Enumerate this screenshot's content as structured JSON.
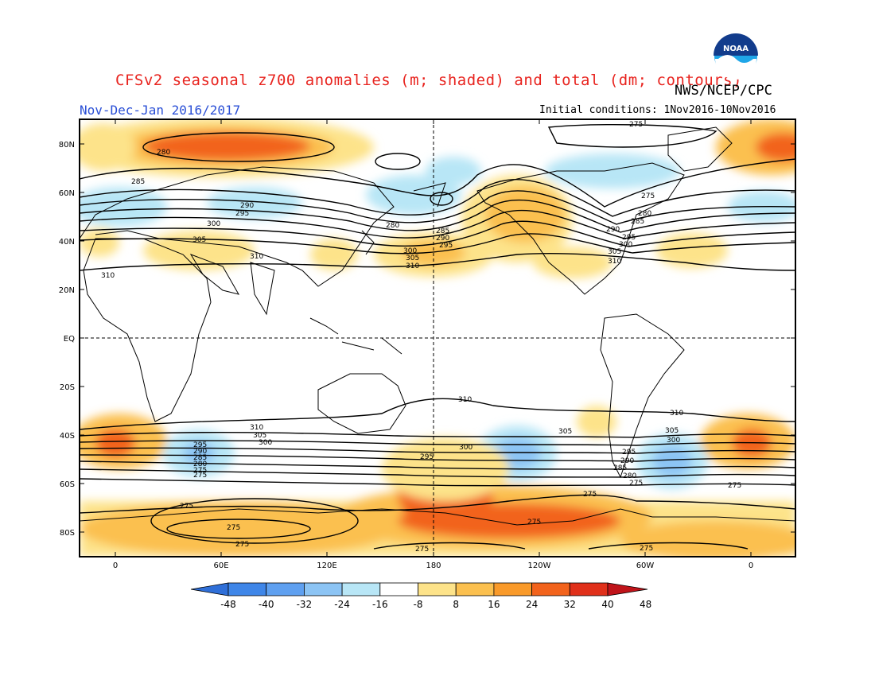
{
  "header": {
    "title": "CFSv2 seasonal z700 anomalies (m; shaded) and total (dm; contours)",
    "org": "NWS/NCEP/CPC",
    "season": "Nov-Dec-Jan 2016/2017",
    "initial_conditions": "Initial conditions: 1Nov2016-10Nov2016",
    "logo_text": "NOAA"
  },
  "map": {
    "lat_labels": [
      "80N",
      "60N",
      "40N",
      "20N",
      "EQ",
      "20S",
      "40S",
      "60S",
      "80S"
    ],
    "lon_labels": [
      "0",
      "60E",
      "120E",
      "180",
      "120W",
      "60W",
      "0"
    ],
    "contour_labels": [
      "275",
      "280",
      "285",
      "290",
      "295",
      "300",
      "305",
      "310"
    ]
  },
  "colorbar": {
    "labels": [
      "-48",
      "-40",
      "-32",
      "-24",
      "-16",
      "-8",
      "8",
      "16",
      "24",
      "32",
      "40",
      "48"
    ],
    "colors": [
      "#2f6fd8",
      "#3f86e8",
      "#5fa0f0",
      "#8cc4f4",
      "#b8e6f6",
      "#ffffff",
      "#fde38a",
      "#fbc04f",
      "#f99a2a",
      "#f2631c",
      "#e0301a",
      "#c0141a"
    ]
  }
}
